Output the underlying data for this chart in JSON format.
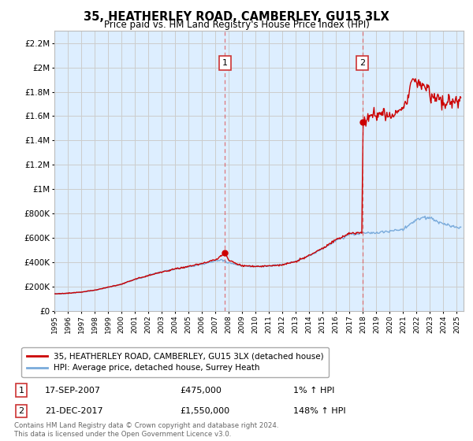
{
  "title": "35, HEATHERLEY ROAD, CAMBERLEY, GU15 3LX",
  "subtitle": "Price paid vs. HM Land Registry's House Price Index (HPI)",
  "ylabel_ticks": [
    "£0",
    "£200K",
    "£400K",
    "£600K",
    "£800K",
    "£1M",
    "£1.2M",
    "£1.4M",
    "£1.6M",
    "£1.8M",
    "£2M",
    "£2.2M"
  ],
  "ytick_values": [
    0,
    200000,
    400000,
    600000,
    800000,
    1000000,
    1200000,
    1400000,
    1600000,
    1800000,
    2000000,
    2200000
  ],
  "ylim": [
    0,
    2300000
  ],
  "xlim_start": 1995.0,
  "xlim_end": 2025.5,
  "transaction1_x": 2007.72,
  "transaction1_y": 475000,
  "transaction2_x": 2017.97,
  "transaction2_y": 1550000,
  "transaction1_label": "17-SEP-2007",
  "transaction1_price": "£475,000",
  "transaction1_hpi": "1% ↑ HPI",
  "transaction2_label": "21-DEC-2017",
  "transaction2_price": "£1,550,000",
  "transaction2_hpi": "148% ↑ HPI",
  "line1_label": "35, HEATHERLEY ROAD, CAMBERLEY, GU15 3LX (detached house)",
  "line2_label": "HPI: Average price, detached house, Surrey Heath",
  "line1_color": "#cc0000",
  "line2_color": "#7aabdb",
  "vline_color": "#dd4444",
  "shade_color": "#ddeeff",
  "background_color": "#ffffff",
  "grid_color": "#cccccc",
  "footer": "Contains HM Land Registry data © Crown copyright and database right 2024.\nThis data is licensed under the Open Government Licence v3.0."
}
